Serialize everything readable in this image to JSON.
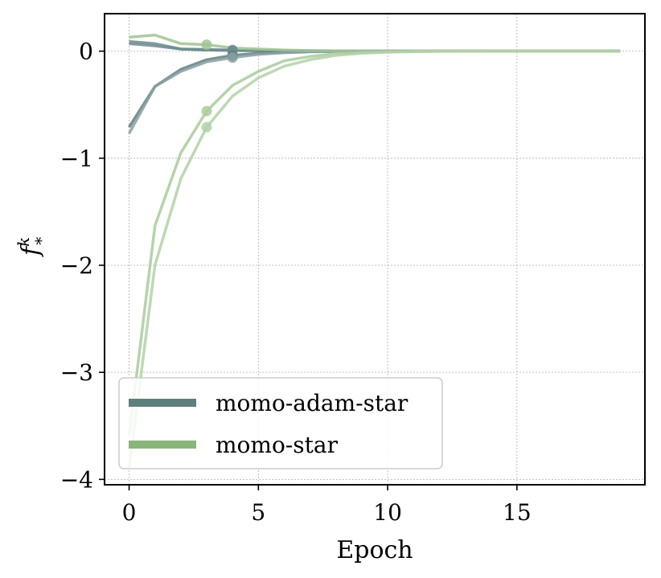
{
  "chart_data": {
    "type": "line",
    "title": "",
    "xlabel": "Epoch",
    "ylabel": "f",
    "ylabel_superscript": "k",
    "ylabel_subscript": "*",
    "xlim": [
      -0.95,
      19.95
    ],
    "ylim": [
      -4.05,
      0.35
    ],
    "xticks": [
      0,
      5,
      10,
      15
    ],
    "xtick_labels": [
      "0",
      "5",
      "10",
      "15"
    ],
    "yticks": [
      0,
      -1,
      -2,
      -3,
      -4
    ],
    "ytick_labels": [
      "0",
      "−1",
      "−2",
      "−3",
      "−4"
    ],
    "grid": true,
    "legend_placement": "lower-left",
    "legend": [
      {
        "label": "momo-adam-star",
        "color": "#5f7f7d"
      },
      {
        "label": "momo-star",
        "color": "#8ab57a"
      }
    ],
    "series": [
      {
        "group": "momo-adam-star",
        "color": "#6e8b8e",
        "x": [
          0,
          1,
          2,
          3,
          4,
          5,
          6,
          7,
          8,
          9,
          10,
          11,
          12,
          13,
          14,
          15,
          16,
          17,
          18,
          19
        ],
        "values": [
          0.09,
          0.07,
          0.02,
          0.01,
          0.005,
          0.003,
          0.002,
          0.001,
          0.0,
          0.0,
          0.0,
          0.0,
          0.0,
          0.0,
          0.0,
          0.0,
          0.0,
          0.0,
          0.0,
          0.0
        ],
        "marker_index": 4
      },
      {
        "group": "momo-adam-star",
        "color": "#6e8b8e",
        "x": [
          0,
          1,
          2,
          3,
          4,
          5,
          6,
          7,
          8,
          9,
          10,
          11,
          12,
          13,
          14,
          15,
          16,
          17,
          18,
          19
        ],
        "values": [
          0.07,
          0.05,
          0.02,
          0.015,
          0.01,
          0.006,
          0.004,
          0.002,
          0.001,
          0.0,
          0.0,
          0.0,
          0.0,
          0.0,
          0.0,
          0.0,
          0.0,
          0.0,
          0.0,
          0.0
        ],
        "marker_index": 4
      },
      {
        "group": "momo-adam-star",
        "color": "#5f7f7d",
        "x": [
          0,
          1,
          2,
          3,
          4,
          5,
          6,
          7,
          8,
          9,
          10,
          11,
          12,
          13,
          14,
          15,
          16,
          17,
          18,
          19
        ],
        "values": [
          -0.71,
          -0.33,
          -0.17,
          -0.08,
          -0.04,
          -0.02,
          -0.01,
          -0.005,
          -0.002,
          0.0,
          0.0,
          0.0,
          0.0,
          0.0,
          0.0,
          0.0,
          0.0,
          0.0,
          0.0,
          0.0
        ],
        "marker_index": 4
      },
      {
        "group": "momo-adam-star",
        "color": "#8aa0a3",
        "x": [
          0,
          1,
          2,
          3,
          4,
          5,
          6,
          7,
          8,
          9,
          10,
          11,
          12,
          13,
          14,
          15,
          16,
          17,
          18,
          19
        ],
        "values": [
          -0.77,
          -0.33,
          -0.19,
          -0.1,
          -0.06,
          -0.03,
          -0.015,
          -0.007,
          -0.003,
          -0.001,
          0.0,
          0.0,
          0.0,
          0.0,
          0.0,
          0.0,
          0.0,
          0.0,
          0.0,
          0.0
        ],
        "marker_index": 4
      },
      {
        "group": "momo-star",
        "color": "#9fc493",
        "x": [
          0,
          1,
          2,
          3,
          4,
          5,
          6,
          7,
          8,
          9,
          10,
          11,
          12,
          13,
          14,
          15,
          16,
          17,
          18,
          19
        ],
        "values": [
          0.13,
          0.15,
          0.07,
          0.06,
          0.03,
          0.02,
          0.01,
          0.005,
          0.002,
          0.001,
          0.0,
          0.0,
          0.0,
          0.0,
          0.0,
          0.0,
          0.0,
          0.0,
          0.0,
          0.0
        ],
        "marker_index": 3
      },
      {
        "group": "momo-star",
        "color": "#a9cb9d",
        "x": [
          0,
          1,
          2,
          3,
          4,
          5,
          6,
          7,
          8,
          9,
          10,
          11,
          12,
          13,
          14,
          15,
          16,
          17,
          18,
          19
        ],
        "values": [
          -3.6,
          -1.63,
          -0.95,
          -0.56,
          -0.32,
          -0.19,
          -0.09,
          -0.05,
          -0.025,
          -0.012,
          -0.006,
          -0.003,
          -0.001,
          0.0,
          0.0,
          0.0,
          0.0,
          0.0,
          0.0,
          0.0
        ],
        "marker_index": 3
      },
      {
        "group": "momo-star",
        "color": "#b3d1a8",
        "x": [
          0,
          1,
          2,
          3,
          4,
          5,
          6,
          7,
          8,
          9,
          10,
          11,
          12,
          13,
          14,
          15,
          16,
          17,
          18,
          19
        ],
        "values": [
          -3.9,
          -2.0,
          -1.19,
          -0.71,
          -0.42,
          -0.25,
          -0.14,
          -0.08,
          -0.04,
          -0.02,
          -0.01,
          -0.005,
          -0.002,
          -0.001,
          0.0,
          0.0,
          0.0,
          0.0,
          0.0,
          0.0
        ],
        "marker_index": 3
      }
    ]
  }
}
